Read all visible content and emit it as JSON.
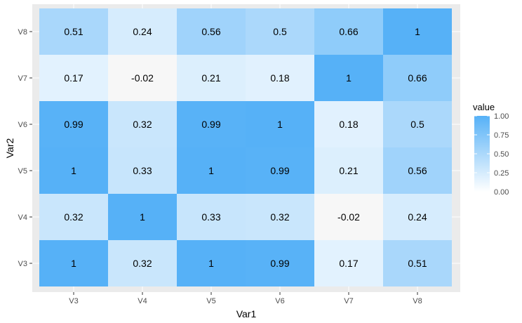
{
  "chart_data": {
    "type": "heatmap",
    "xlabel": "Var1",
    "ylabel": "Var2",
    "x_categories": [
      "V3",
      "V4",
      "V5",
      "V6",
      "V7",
      "V8"
    ],
    "y_categories": [
      "V3",
      "V4",
      "V5",
      "V6",
      "V7",
      "V8"
    ],
    "values": [
      [
        1,
        0.32,
        1,
        0.99,
        0.17,
        0.51
      ],
      [
        0.32,
        1,
        0.33,
        0.32,
        -0.02,
        0.24
      ],
      [
        1,
        0.33,
        1,
        0.99,
        0.21,
        0.56
      ],
      [
        0.99,
        0.32,
        0.99,
        1,
        0.18,
        0.5
      ],
      [
        0.17,
        -0.02,
        0.21,
        0.18,
        1,
        0.66
      ],
      [
        0.51,
        0.24,
        0.56,
        0.5,
        0.66,
        1
      ]
    ],
    "legend": {
      "title": "value",
      "ticks": [
        "0.00",
        "0.25",
        "0.50",
        "0.75",
        "1.00"
      ],
      "tick_values": [
        0,
        0.25,
        0.5,
        0.75,
        1
      ],
      "range": [
        0,
        1
      ],
      "placement": "right",
      "low_color": "#ffffff",
      "high_color": "#56b1f7"
    },
    "panel_background": "#ebebeb",
    "grid": true
  }
}
